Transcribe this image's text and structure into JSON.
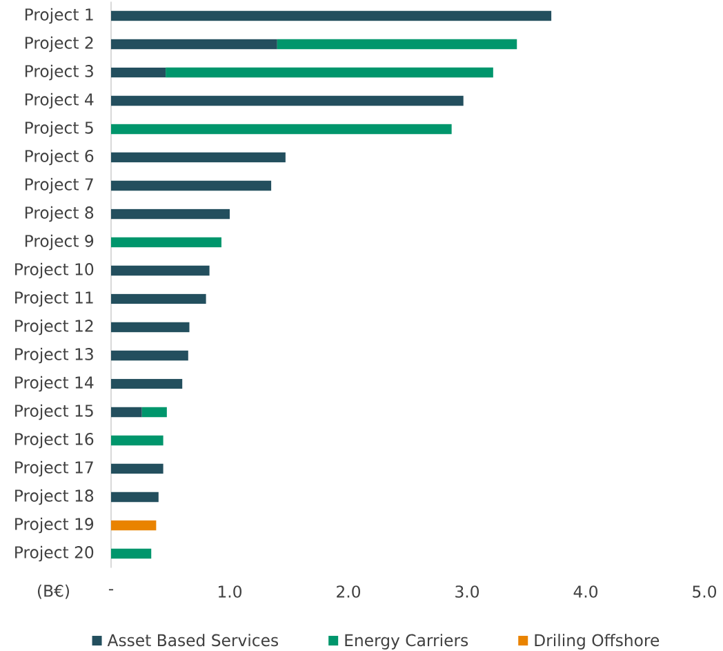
{
  "chart_data": {
    "type": "bar",
    "orientation": "horizontal",
    "stacked": true,
    "categories": [
      "Project 1",
      "Project 2",
      "Project 3",
      "Project 4",
      "Project 5",
      "Project 6",
      "Project 7",
      "Project 8",
      "Project 9",
      "Project 10",
      "Project 11",
      "Project 12",
      "Project 13",
      "Project 14",
      "Project 15",
      "Project 16",
      "Project 17",
      "Project 18",
      "Project 19",
      "Project 20"
    ],
    "series": [
      {
        "name": "Asset Based Services",
        "color": "#234f5e",
        "values": [
          3.71,
          1.4,
          0.46,
          2.97,
          null,
          1.47,
          1.35,
          1.0,
          null,
          0.83,
          0.8,
          0.66,
          0.65,
          0.6,
          0.26,
          null,
          0.44,
          0.4,
          null,
          null
        ]
      },
      {
        "name": "Energy Carriers",
        "color": "#00966c",
        "values": [
          null,
          2.02,
          2.76,
          null,
          2.87,
          null,
          null,
          null,
          0.93,
          null,
          null,
          null,
          null,
          null,
          0.21,
          0.44,
          null,
          null,
          null,
          0.34
        ]
      },
      {
        "name": "Driling Offshore",
        "color": "#e98300",
        "values": [
          null,
          null,
          null,
          null,
          null,
          null,
          null,
          null,
          null,
          null,
          null,
          null,
          null,
          null,
          null,
          null,
          null,
          null,
          0.38,
          null
        ]
      }
    ],
    "xlabel": "(B€)",
    "xlim": [
      0,
      5
    ],
    "xticks": [
      {
        "value": 0,
        "label": "-"
      },
      {
        "value": 1,
        "label": "1.0"
      },
      {
        "value": 2,
        "label": "2.0"
      },
      {
        "value": 3,
        "label": "3.0"
      },
      {
        "value": 4,
        "label": "4.0"
      },
      {
        "value": 5,
        "label": "5.0"
      }
    ],
    "legend": "bottom"
  }
}
